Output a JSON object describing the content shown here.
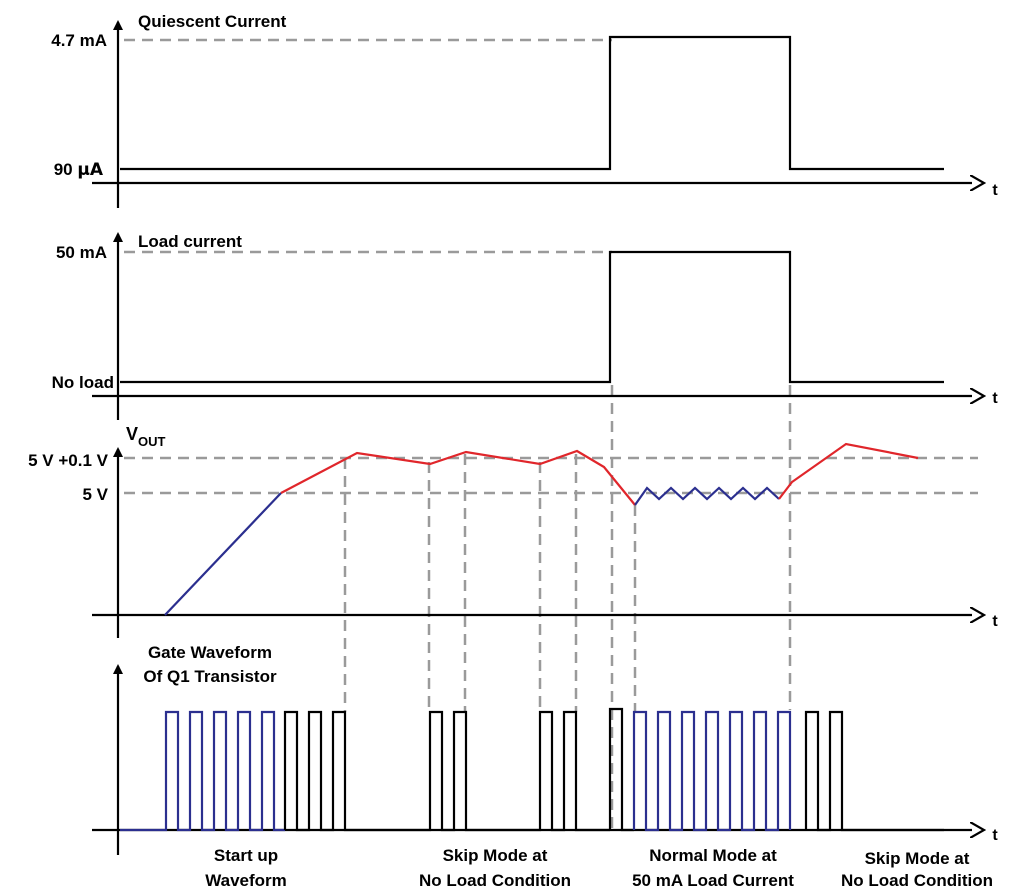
{
  "panels": {
    "quiescent": {
      "title": "Quiescent Current",
      "level_high": "4.7 mA",
      "level_low_num": "90 ",
      "level_low_unit": "μA",
      "axis_label": "t"
    },
    "load": {
      "title": "Load current",
      "level_high": "50 mA",
      "level_low": "No load",
      "axis_label": "t"
    },
    "vout": {
      "title_main": "V",
      "title_sub": "OUT",
      "level_high": "5 V +0.1 V",
      "level_low": "5 V",
      "axis_label": "t"
    },
    "gate": {
      "title_line1": "Gate Waveform",
      "title_line2": "Of Q1 Transistor",
      "axis_label": "t"
    }
  },
  "phases": [
    {
      "line1": "Start up",
      "line2": "Waveform"
    },
    {
      "line1": "Skip Mode at",
      "line2": "No Load Condition"
    },
    {
      "line1": "Normal Mode at",
      "line2": "50 mA Load Current"
    },
    {
      "line1": "Skip Mode at",
      "line2": "No Load Condition"
    }
  ],
  "colors": {
    "signal": "#000000",
    "startup_ramp": "#2b2f8f",
    "regulation": "#e0262b",
    "gridline": "#9a9a9a"
  }
}
